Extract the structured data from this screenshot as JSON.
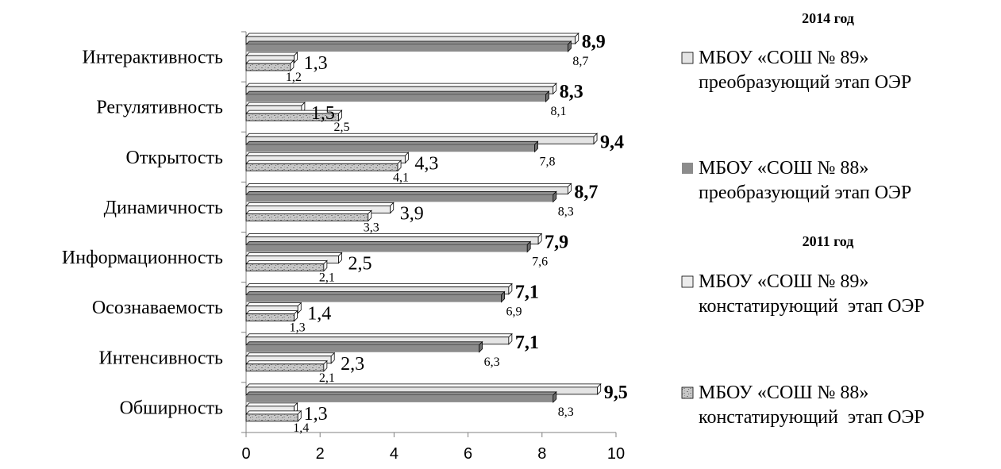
{
  "chart_data": {
    "type": "bar",
    "orientation": "horizontal",
    "categories": [
      "Интерактивность",
      "Регулятивность",
      "Открытость",
      "Динамичность",
      "Информационность",
      "Осознаваемость",
      "Интенсивность",
      "Обширность"
    ],
    "series": [
      {
        "name": "МБОУ «СОШ № 89» преобразующий этап ОЭР",
        "group": "2014 год",
        "color": "#e4e4e4",
        "pattern": "solid",
        "values": [
          8.9,
          8.3,
          9.4,
          8.7,
          7.9,
          7.1,
          7.1,
          9.5
        ],
        "labels": [
          "8,9",
          "8,3",
          "9,4",
          "8,7",
          "7,9",
          "7,1",
          "7,1",
          "9,5"
        ]
      },
      {
        "name": "МБОУ «СОШ № 88» преобразующий этап ОЭР",
        "group": "2014 год",
        "color": "#8c8c8c",
        "pattern": "solid",
        "values": [
          8.7,
          8.1,
          7.8,
          8.3,
          7.6,
          6.9,
          6.3,
          8.3
        ],
        "labels": [
          "8,7",
          "8,1",
          "7,8",
          "8,3",
          "7,6",
          "6,9",
          "6,3",
          "8,3"
        ]
      },
      {
        "name": "МБОУ «СОШ № 89» констатирующий  этап ОЭР",
        "group": "2011 год",
        "color": "#ececec",
        "pattern": "solid",
        "values": [
          1.3,
          1.5,
          4.3,
          3.9,
          2.5,
          1.4,
          2.3,
          1.3
        ],
        "labels": [
          "1,3",
          "1,5",
          "4,3",
          "3,9",
          "2,5",
          "1,4",
          "2,3",
          "1,3"
        ]
      },
      {
        "name": "МБОУ «СОШ № 88» констатирующий  этап ОЭР",
        "group": "2011 год",
        "color": "#b4b4b4",
        "pattern": "speckled",
        "values": [
          1.2,
          2.5,
          4.1,
          3.3,
          2.1,
          1.3,
          2.1,
          1.4
        ],
        "labels": [
          "1,2",
          "2,5",
          "4,1",
          "3,3",
          "2,1",
          "1,3",
          "2,1",
          "1,4"
        ]
      }
    ],
    "xlim": [
      0,
      10
    ],
    "xticks": [
      0,
      2,
      4,
      6,
      8,
      10
    ],
    "legend": {
      "placement": "right",
      "groups": [
        {
          "title": "2014 год",
          "series": [
            0,
            1
          ]
        },
        {
          "title": "2011 год",
          "series": [
            2,
            3
          ]
        }
      ]
    },
    "grid": false
  }
}
